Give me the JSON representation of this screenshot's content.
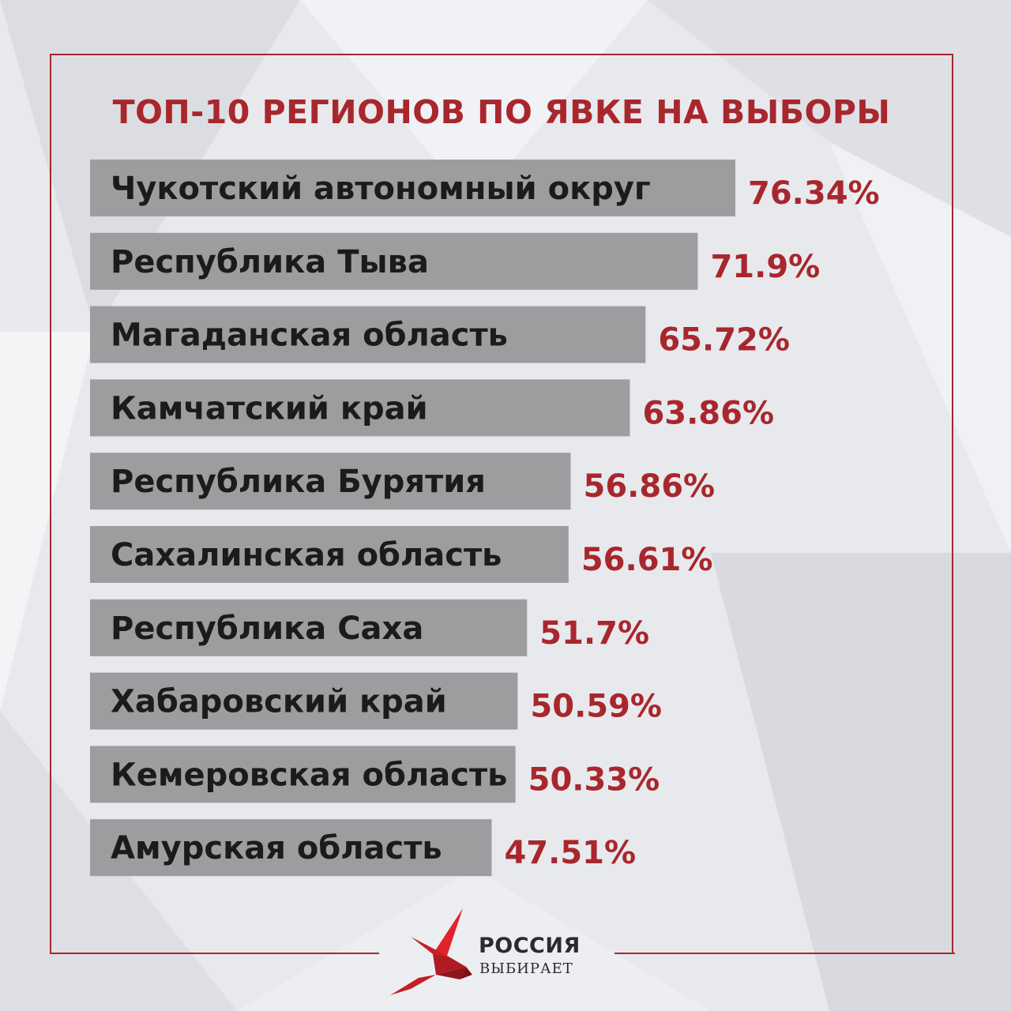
{
  "chart_data": {
    "type": "bar",
    "orientation": "horizontal",
    "title": "ТОП-10 РЕГИОНОВ ПО ЯВКЕ НА ВЫБОРЫ",
    "categories": [
      "Чукотский автономный округ",
      "Республика Тыва",
      "Магаданская область",
      "Камчатский край",
      "Республика Бурятия",
      "Сахалинская область",
      "Республика Саха",
      "Хабаровский край",
      "Кемеровская область",
      "Амурская область"
    ],
    "values": [
      76.34,
      71.9,
      65.72,
      63.86,
      56.86,
      56.61,
      51.7,
      50.59,
      50.33,
      47.51
    ],
    "value_labels": [
      "76.34%",
      "71.9%",
      "65.72%",
      "63.86%",
      "56.86%",
      "56.61%",
      "51.7%",
      "50.59%",
      "50.33%",
      "47.51%"
    ],
    "value_unit": "%",
    "grid": false,
    "legend": "none",
    "colors": {
      "bar": "#9d9d9f",
      "value_text": "#a8272d",
      "title": "#a8272d",
      "frame": "#a8272d"
    }
  },
  "logo": {
    "title": "РОССИЯ",
    "subtitle": "ВЫБИРАЕТ",
    "icon": "red-bird-icon"
  }
}
